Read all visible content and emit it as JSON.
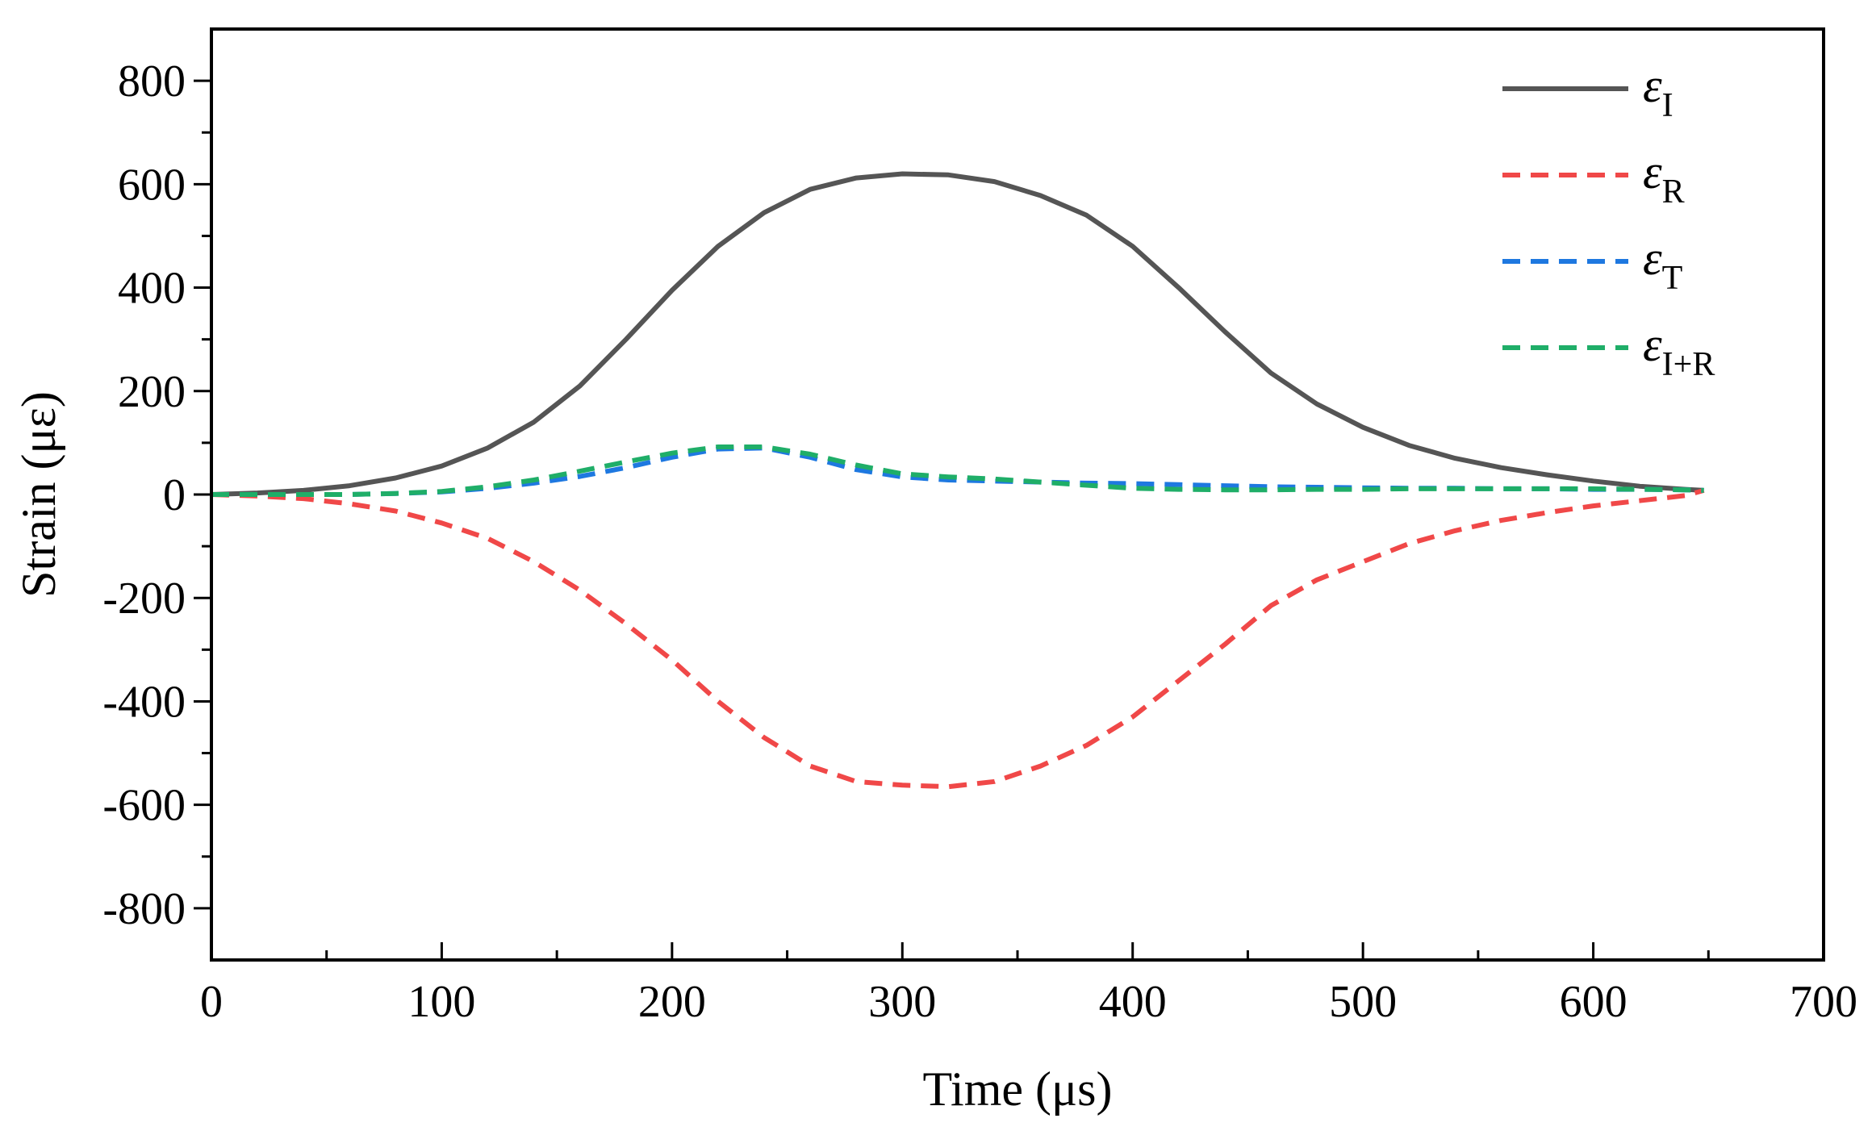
{
  "chart_data": {
    "type": "line",
    "xlabel": "Time (μs)",
    "ylabel": "Strain (με)",
    "xlim": [
      0,
      700
    ],
    "ylim": [
      -900,
      900
    ],
    "xticks": [
      0,
      100,
      200,
      300,
      400,
      500,
      600,
      700
    ],
    "xtick_labels": [
      "0",
      "100",
      "200",
      "300",
      "400",
      "500",
      "600",
      "700"
    ],
    "yticks": [
      -800,
      -600,
      -400,
      -200,
      0,
      200,
      400,
      600,
      800
    ],
    "ytick_labels": [
      "-800",
      "-600",
      "-400",
      "-200",
      "0",
      "200",
      "400",
      "600",
      "800"
    ],
    "grid": false,
    "legend_position": "top-right",
    "series": [
      {
        "name": "εI",
        "symbol": "ε",
        "subscript": "I",
        "color": "#555555",
        "dash": "solid",
        "x": [
          0,
          20,
          40,
          60,
          80,
          100,
          120,
          140,
          160,
          180,
          200,
          220,
          240,
          260,
          280,
          300,
          320,
          340,
          360,
          380,
          400,
          420,
          440,
          460,
          480,
          500,
          520,
          540,
          560,
          580,
          600,
          620,
          640,
          648
        ],
        "y": [
          0,
          3,
          8,
          17,
          32,
          55,
          90,
          140,
          210,
          300,
          395,
          480,
          545,
          590,
          612,
          620,
          618,
          605,
          578,
          540,
          480,
          400,
          315,
          235,
          175,
          130,
          95,
          70,
          52,
          38,
          26,
          16,
          10,
          8
        ]
      },
      {
        "name": "εR",
        "symbol": "ε",
        "subscript": "R",
        "color": "#f04848",
        "dash": "dashed",
        "x": [
          0,
          20,
          40,
          60,
          80,
          100,
          120,
          140,
          160,
          180,
          200,
          220,
          240,
          260,
          280,
          300,
          320,
          340,
          360,
          380,
          400,
          420,
          440,
          460,
          480,
          500,
          520,
          540,
          560,
          580,
          600,
          620,
          640,
          648
        ],
        "y": [
          0,
          -3,
          -8,
          -18,
          -32,
          -55,
          -85,
          -130,
          -185,
          -250,
          -320,
          -400,
          -470,
          -525,
          -555,
          -562,
          -565,
          -555,
          -525,
          -485,
          -430,
          -360,
          -290,
          -215,
          -165,
          -130,
          -95,
          -70,
          -50,
          -35,
          -22,
          -12,
          -2,
          8
        ]
      },
      {
        "name": "εT",
        "symbol": "ε",
        "subscript": "T",
        "color": "#1e78e0",
        "dash": "dashed",
        "x": [
          0,
          20,
          40,
          60,
          80,
          100,
          120,
          140,
          160,
          180,
          200,
          220,
          240,
          260,
          280,
          300,
          320,
          340,
          360,
          380,
          400,
          420,
          440,
          460,
          480,
          500,
          520,
          540,
          560,
          580,
          600,
          620,
          640,
          648
        ],
        "y": [
          0,
          0,
          0,
          0,
          2,
          5,
          12,
          22,
          35,
          52,
          72,
          88,
          90,
          72,
          48,
          34,
          28,
          26,
          24,
          22,
          21,
          19,
          17,
          15,
          14,
          13,
          12,
          12,
          11,
          11,
          10,
          10,
          9,
          8
        ]
      },
      {
        "name": "εI+R",
        "symbol": "ε",
        "subscript": "I+R",
        "color": "#1fae68",
        "dash": "dashed",
        "x": [
          0,
          20,
          40,
          60,
          80,
          100,
          120,
          140,
          160,
          180,
          200,
          220,
          240,
          260,
          280,
          300,
          320,
          340,
          360,
          380,
          400,
          420,
          440,
          460,
          480,
          500,
          520,
          540,
          560,
          580,
          600,
          620,
          640,
          648
        ],
        "y": [
          0,
          0,
          0,
          0,
          2,
          6,
          15,
          28,
          45,
          63,
          80,
          92,
          92,
          78,
          57,
          40,
          34,
          30,
          24,
          18,
          12,
          10,
          9,
          9,
          10,
          10,
          11,
          11,
          11,
          11,
          11,
          10,
          9,
          8
        ]
      }
    ]
  }
}
